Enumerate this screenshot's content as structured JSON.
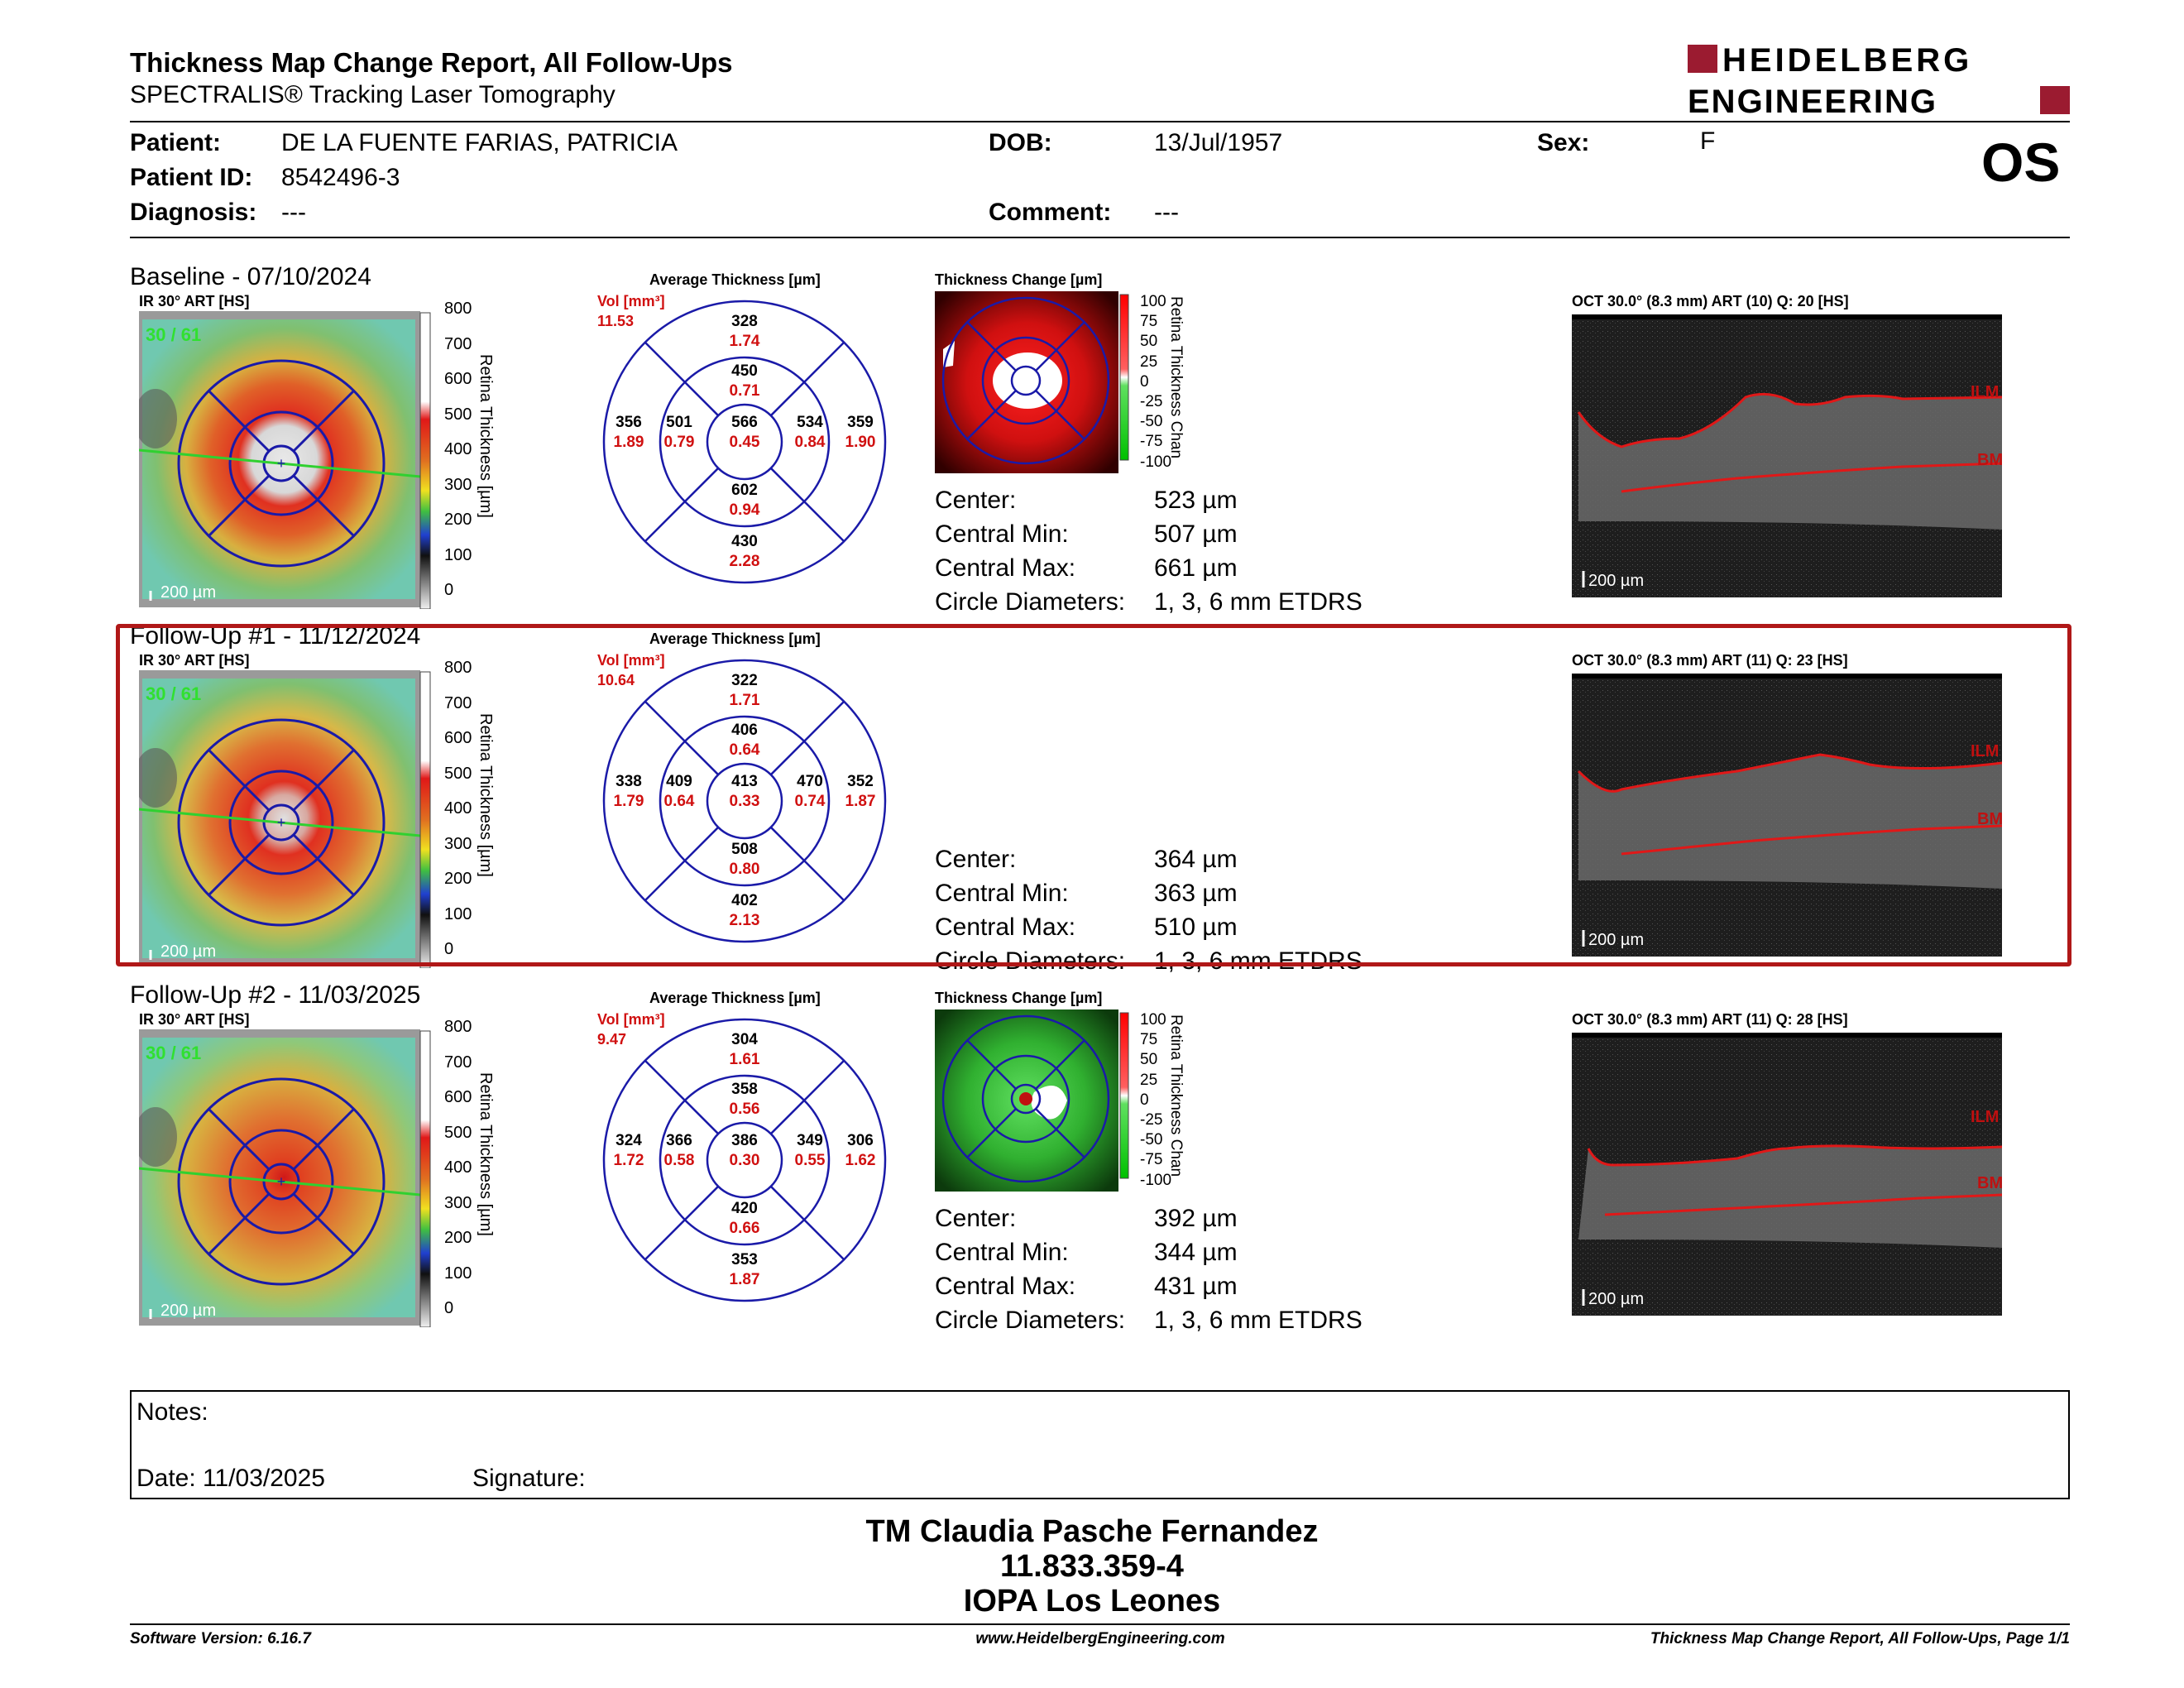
{
  "header": {
    "title": "Thickness Map Change Report, All Follow-Ups",
    "subtitle": "SPECTRALIS® Tracking Laser Tomography",
    "logo_line1": "HEIDELBERG",
    "logo_line2": "ENGINEERING",
    "eye": "OS"
  },
  "patient": {
    "name_label": "Patient:",
    "name": "DE LA FUENTE FARIAS, PATRICIA",
    "id_label": "Patient ID:",
    "id": "8542496-3",
    "diag_label": "Diagnosis:",
    "diag": "---",
    "dob_label": "DOB:",
    "dob": "13/Jul/1957",
    "comment_label": "Comment:",
    "comment": "---",
    "sex_label": "Sex:",
    "sex": "F"
  },
  "labels": {
    "ir": "IR 30° ART [HS]",
    "avg": "Average Thickness [µm]",
    "change": "Thickness Change [µm]",
    "vol": "Vol [mm³]",
    "scalebar": "200 µm",
    "colorbar_title": "Retina Thickness [µm]",
    "change_bar_title": "Retina Thickness Chan",
    "center": "Center:",
    "cmin": "Central Min:",
    "cmax": "Central Max:",
    "diam": "Circle Diameters:",
    "diam_val": "1, 3, 6 mm ETDRS",
    "ilm": "ILM",
    "bm": "BM"
  },
  "colorbar_ticks": [
    "800",
    "700",
    "600",
    "500",
    "400",
    "300",
    "200",
    "100",
    "0"
  ],
  "change_ticks": [
    "100",
    "75",
    "50",
    "25",
    "0",
    "-25",
    "-50",
    "-75",
    "-100"
  ],
  "exams": [
    {
      "title": "Baseline - 07/10/2024",
      "ir_quality": "30 / 61",
      "oct": "OCT 30.0° (8.3 mm) ART (10) Q: 20 [HS]",
      "total_vol": "11.53",
      "grid": {
        "sup_out": [
          "328",
          "1.74"
        ],
        "sup_in": [
          "450",
          "0.71"
        ],
        "nas_out": [
          "356",
          "1.89"
        ],
        "nas_in": [
          "501",
          "0.79"
        ],
        "center": [
          "566",
          "0.45"
        ],
        "tem_in": [
          "534",
          "0.84"
        ],
        "tem_out": [
          "359",
          "1.90"
        ],
        "inf_in": [
          "602",
          "0.94"
        ],
        "inf_out": [
          "430",
          "2.28"
        ]
      },
      "center": "523 µm",
      "cmin": "507 µm",
      "cmax": "661 µm"
    },
    {
      "title": "Follow-Up #1 - 11/12/2024",
      "ir_quality": "30 / 61",
      "oct": "OCT 30.0° (8.3 mm) ART (11) Q: 23 [HS]",
      "total_vol": "10.64",
      "grid": {
        "sup_out": [
          "322",
          "1.71"
        ],
        "sup_in": [
          "406",
          "0.64"
        ],
        "nas_out": [
          "338",
          "1.79"
        ],
        "nas_in": [
          "409",
          "0.64"
        ],
        "center": [
          "413",
          "0.33"
        ],
        "tem_in": [
          "470",
          "0.74"
        ],
        "tem_out": [
          "352",
          "1.87"
        ],
        "inf_in": [
          "508",
          "0.80"
        ],
        "inf_out": [
          "402",
          "2.13"
        ]
      },
      "center": "364 µm",
      "cmin": "363 µm",
      "cmax": "510 µm"
    },
    {
      "title": "Follow-Up #2 - 11/03/2025",
      "ir_quality": "30 / 61",
      "oct": "OCT 30.0° (8.3 mm) ART (11) Q: 28 [HS]",
      "total_vol": "9.47",
      "grid": {
        "sup_out": [
          "304",
          "1.61"
        ],
        "sup_in": [
          "358",
          "0.56"
        ],
        "nas_out": [
          "324",
          "1.72"
        ],
        "nas_in": [
          "366",
          "0.58"
        ],
        "center": [
          "386",
          "0.30"
        ],
        "tem_in": [
          "349",
          "0.55"
        ],
        "tem_out": [
          "306",
          "1.62"
        ],
        "inf_in": [
          "420",
          "0.66"
        ],
        "inf_out": [
          "353",
          "1.87"
        ]
      },
      "center": "392 µm",
      "cmin": "344 µm",
      "cmax": "431 µm"
    }
  ],
  "notes": {
    "label": "Notes:",
    "date_label": "Date: 11/03/2025",
    "signature_label": "Signature:"
  },
  "signer": {
    "line1": "TM Claudia Pasche Fernandez",
    "line2": "11.833.359-4",
    "line3": "IOPA Los Leones"
  },
  "footer": {
    "left": "Software Version: 6.16.7",
    "center": "www.HeidelbergEngineering.com",
    "right": "Thickness Map Change Report, All Follow-Ups, Page 1/1"
  },
  "colors": {
    "highlight_border": "#b01818",
    "logo_red": "#9b1b30",
    "grid_blue": "#1a1aa8",
    "value_red": "#d01010"
  }
}
